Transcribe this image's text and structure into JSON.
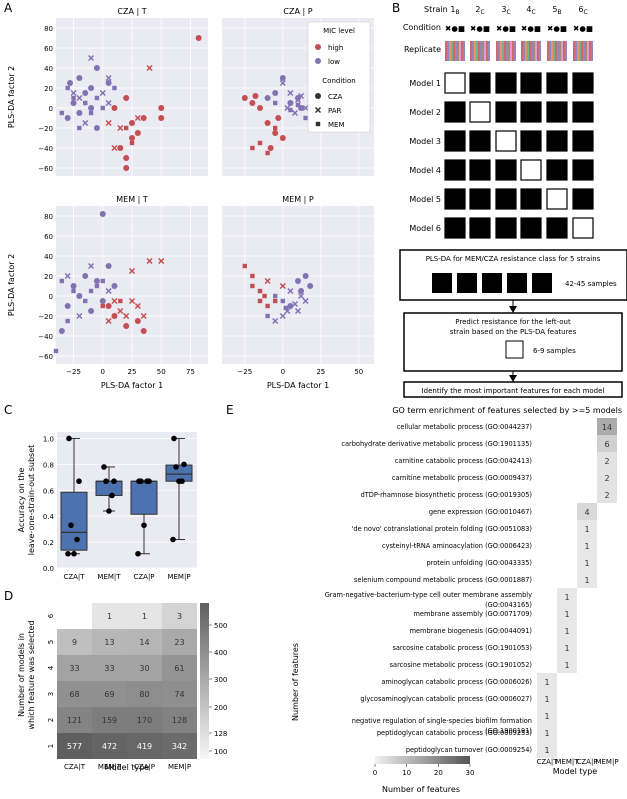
{
  "panel_letters": {
    "a": "A",
    "b": "B",
    "c": "C",
    "d": "D",
    "e": "E"
  },
  "panel_a": {
    "titles": [
      "CZA | T",
      "CZA | P",
      "MEM | T",
      "MEM | P"
    ],
    "ylabel": "PLS-DA factor 2",
    "xlabel": "PLS-DA factor 1",
    "yticks": [
      "80",
      "60",
      "40",
      "20",
      "0",
      "−20",
      "−40",
      "−60"
    ],
    "xticks": [
      "−25",
      "0",
      "25",
      "50",
      "75"
    ],
    "xticks_p": [
      "−25",
      "0",
      "25",
      "50"
    ],
    "legend": {
      "mic_title": "MIC level",
      "high": "high",
      "low": "low",
      "cond_title": "Condition",
      "cza": "CZA",
      "par": "PAR",
      "mem": "MEM"
    },
    "colors": {
      "high": "#c44e52",
      "low": "#8172b2",
      "bg": "#eaeaf2"
    }
  },
  "panel_b": {
    "strain_label": "Strain",
    "strains": [
      {
        "n": "1",
        "s": "B"
      },
      {
        "n": "2",
        "s": "C"
      },
      {
        "n": "3",
        "s": "C"
      },
      {
        "n": "4",
        "s": "C"
      },
      {
        "n": "5",
        "s": "B"
      },
      {
        "n": "6",
        "s": "C"
      }
    ],
    "condition_label": "Condition",
    "condition_glyphs": "✖●■",
    "replicate_label": "Replicate",
    "models": [
      "Model 1",
      "Model 2",
      "Model 3",
      "Model 4",
      "Model 5",
      "Model 6"
    ],
    "box1": "PLS-DA for MEM/CZA resistance class for 5 strains",
    "samples1": "42-45 samples",
    "box2_line1": "Predict resistance for the left-out",
    "box2_line2": "strain based on the PLS-DA features",
    "samples2": "6-9 samples",
    "box3": "Identify the most important features for each model"
  },
  "panel_c": {
    "ylabel_1": "Accuracy on the",
    "ylabel_2": "leave-one-strain-out subset",
    "yticks": [
      "1.0",
      "0.8",
      "0.6",
      "0.4",
      "0.2",
      "0.0"
    ],
    "categories": [
      "CZA|T",
      "MEM|T",
      "CZA|P",
      "MEM|P"
    ],
    "chart_data": {
      "type": "box",
      "categories": [
        "CZA|T",
        "MEM|T",
        "CZA|P",
        "MEM|P"
      ],
      "points": [
        [
          1.0,
          0.67,
          0.33,
          0.22,
          0.11,
          0.11
        ],
        [
          0.78,
          0.67,
          0.67,
          0.56,
          0.44
        ],
        [
          0.67,
          0.67,
          0.67,
          0.67,
          0.33,
          0.11
        ],
        [
          1.0,
          0.8,
          0.78,
          0.67,
          0.67,
          0.22
        ]
      ],
      "ylim": [
        0,
        1.05
      ]
    }
  },
  "panel_d": {
    "ylabel_1": "Number of models in",
    "ylabel_2": "which feature was selected",
    "xlabel": "Model type",
    "rows": [
      "6",
      "5",
      "4",
      "3",
      "2",
      "1"
    ],
    "cols": [
      "CZA|T",
      "MEM|T",
      "CZA|P",
      "MEM|P"
    ],
    "values": [
      [
        "",
        "1",
        "1",
        "3"
      ],
      [
        "9",
        "13",
        "14",
        "23"
      ],
      [
        "33",
        "33",
        "30",
        "61"
      ],
      [
        "68",
        "69",
        "80",
        "74"
      ],
      [
        "121",
        "159",
        "170",
        "128"
      ],
      [
        "577",
        "472",
        "419",
        "342"
      ]
    ],
    "cbar_label": "Number of features",
    "cbar_ticks": [
      "500",
      "400",
      "300",
      "200",
      "128",
      "100"
    ]
  },
  "panel_e": {
    "title": "GO term enrichment of features selected by >=5 models",
    "xlabel": "Model type",
    "cols": [
      "CZA|T",
      "MEM|T",
      "CZA|P",
      "MEM|P"
    ],
    "terms": [
      "cellular metabolic process (GO:0044237)",
      "carbohydrate derivative metabolic process (GO:1901135)",
      "carnitine catabolic process (GO:0042413)",
      "carnitine metabolic process (GO:0009437)",
      "dTDP-rhamnose biosynthetic process (GO:0019305)",
      "gene expression (GO:0010467)",
      "'de novo' cotranslational protein folding (GO:0051083)",
      "cysteinyl-tRNA aminoacylation (GO:0006423)",
      "protein unfolding (GO:0043335)",
      "selenium compound metabolic process (GO:0001887)",
      "Gram-negative-bacterium-type cell outer membrane assembly",
      "(GO:0043165)",
      "membrane assembly (GO:0071709)",
      "membrane biogenesis (GO:0044091)",
      "sarcosine catabolic process (GO:1901053)",
      "sarcosine metabolic process (GO:1901052)",
      "aminoglycan catabolic process (GO:0006026)",
      "glycosaminoglycan catabolic process (GO:0006027)",
      "negative regulation of single-species biofilm formation",
      "(GO:1900191)",
      "peptidoglycan catabolic process (GO:0009253)",
      "peptidoglycan turnover (GO:0009254)"
    ],
    "cells": [
      {
        "row": 0,
        "col": 3,
        "v": "14"
      },
      {
        "row": 1,
        "col": 3,
        "v": "6"
      },
      {
        "row": 2,
        "col": 3,
        "v": "2"
      },
      {
        "row": 3,
        "col": 3,
        "v": "2"
      },
      {
        "row": 4,
        "col": 3,
        "v": "2"
      },
      {
        "row": 5,
        "col": 2,
        "v": "4"
      },
      {
        "row": 6,
        "col": 2,
        "v": "1"
      },
      {
        "row": 7,
        "col": 2,
        "v": "1"
      },
      {
        "row": 8,
        "col": 2,
        "v": "1"
      },
      {
        "row": 9,
        "col": 2,
        "v": "1"
      },
      {
        "row": 10,
        "col": 1,
        "v": "1"
      },
      {
        "row": 11,
        "col": 1,
        "v": "1"
      },
      {
        "row": 12,
        "col": 1,
        "v": "1"
      },
      {
        "row": 13,
        "col": 1,
        "v": "1"
      },
      {
        "row": 14,
        "col": 1,
        "v": "1"
      },
      {
        "row": 15,
        "col": 0,
        "v": "1"
      },
      {
        "row": 16,
        "col": 0,
        "v": "1"
      },
      {
        "row": 17,
        "col": 0,
        "v": "1"
      },
      {
        "row": 18,
        "col": 0,
        "v": "1"
      },
      {
        "row": 19,
        "col": 0,
        "v": "1"
      }
    ],
    "cbar_label": "Number of features",
    "cbar_ticks": [
      "0",
      "10",
      "20",
      "30"
    ]
  }
}
